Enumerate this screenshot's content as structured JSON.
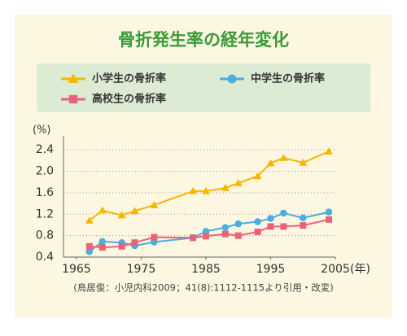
{
  "chart_data": {
    "type": "line",
    "title": "骨折発生率の経年変化",
    "y_unit": "(%)",
    "x_unit": "(年)",
    "source": "(鳥居俊：小児内科2009；41(8):1112-1115より引用・改変)",
    "xlim": [
      1963,
      2005
    ],
    "xticks": [
      1965,
      1975,
      1985,
      1995,
      2005
    ],
    "ylim": [
      0.4,
      2.6
    ],
    "yticks": [
      0.4,
      0.8,
      1.2,
      1.6,
      {
        "value": 2,
        "label": "2.0"
      },
      2.4
    ],
    "grid": true,
    "series": [
      {
        "name": "小学生の骨折率",
        "color": "#f5b800",
        "marker": "triangle",
        "x": [
          1967,
          1969,
          1972,
          1974,
          1977,
          1983,
          1985,
          1988,
          1990,
          1993,
          1995,
          1997,
          2000,
          2004
        ],
        "values": [
          1.08,
          1.27,
          1.18,
          1.26,
          1.37,
          1.63,
          1.63,
          1.69,
          1.78,
          1.91,
          2.15,
          2.25,
          2.16,
          2.37
        ]
      },
      {
        "name": "中学生の骨折率",
        "color": "#4aaee0",
        "marker": "circle",
        "x": [
          1967,
          1969,
          1972,
          1974,
          1977,
          1983,
          1985,
          1988,
          1990,
          1993,
          1995,
          1997,
          2000,
          2004
        ],
        "values": [
          0.5,
          0.69,
          0.67,
          0.61,
          0.68,
          0.76,
          0.88,
          0.95,
          1.02,
          1.06,
          1.12,
          1.22,
          1.13,
          1.24
        ]
      },
      {
        "name": "高校生の骨折率",
        "color": "#e8637a",
        "marker": "square",
        "x": [
          1967,
          1969,
          1972,
          1974,
          1977,
          1983,
          1985,
          1988,
          1990,
          1993,
          1995,
          1997,
          2000,
          2004
        ],
        "values": [
          0.6,
          0.58,
          0.6,
          0.67,
          0.77,
          0.76,
          0.79,
          0.83,
          0.8,
          0.87,
          0.97,
          0.97,
          0.99,
          1.1
        ]
      }
    ]
  }
}
